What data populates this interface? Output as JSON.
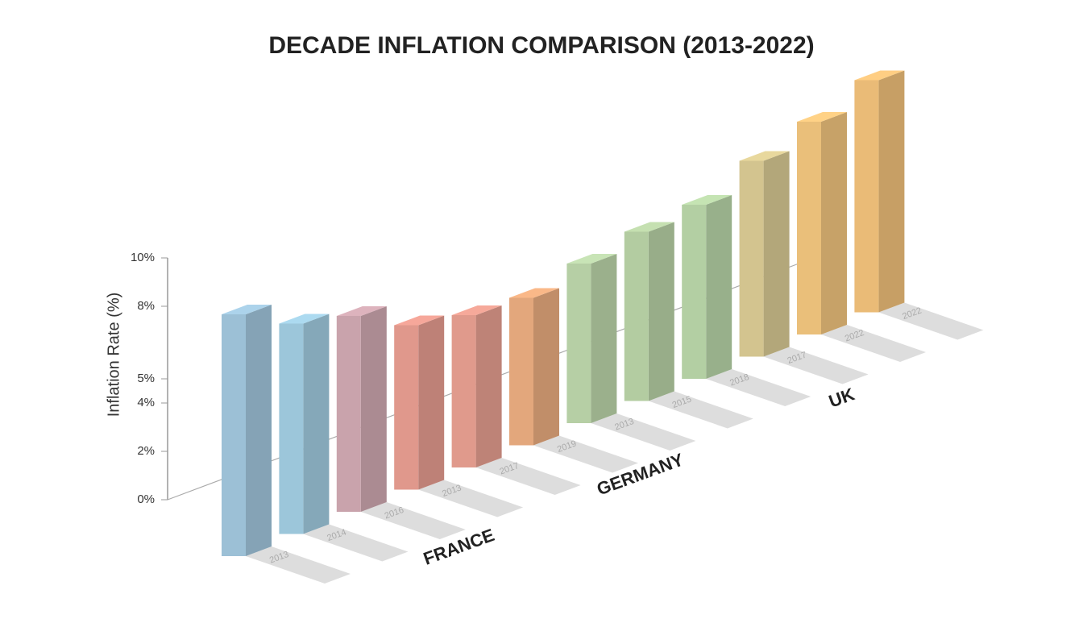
{
  "chart_data": {
    "type": "bar3d",
    "title": "DECADE INFLATION COMPARISON (2013-2022)",
    "y_label": "Inflation Rate (%)",
    "categories": [
      "2013",
      "2014",
      "2016",
      "2013",
      "2017",
      "2019",
      "2013",
      "2015",
      "2018",
      "2017",
      "2022",
      "2022"
    ],
    "values": [
      10.0,
      8.7,
      8.1,
      6.8,
      6.3,
      6.1,
      6.6,
      7.0,
      7.2,
      8.1,
      8.8,
      9.6
    ],
    "colors": [
      "#9cc0d6",
      "#9cc6da",
      "#c9a3ac",
      "#e0988c",
      "#e09a8c",
      "#e3a77c",
      "#b6cfa5",
      "#b3cca1",
      "#b3cfa3",
      "#d3c48f",
      "#eabf7a",
      "#eabb77"
    ],
    "group_labels": [
      "FRANCE",
      "GERMANY",
      "UK"
    ],
    "ylim": [
      0,
      10
    ],
    "yticks": [
      {
        "value": 10,
        "label": "10%"
      },
      {
        "value": 8,
        "label": "8%"
      },
      {
        "value": 5,
        "label": "5%"
      },
      {
        "value": 4,
        "label": "4%"
      },
      {
        "value": 2,
        "label": "2%"
      },
      {
        "value": 0,
        "label": "0%"
      }
    ]
  }
}
